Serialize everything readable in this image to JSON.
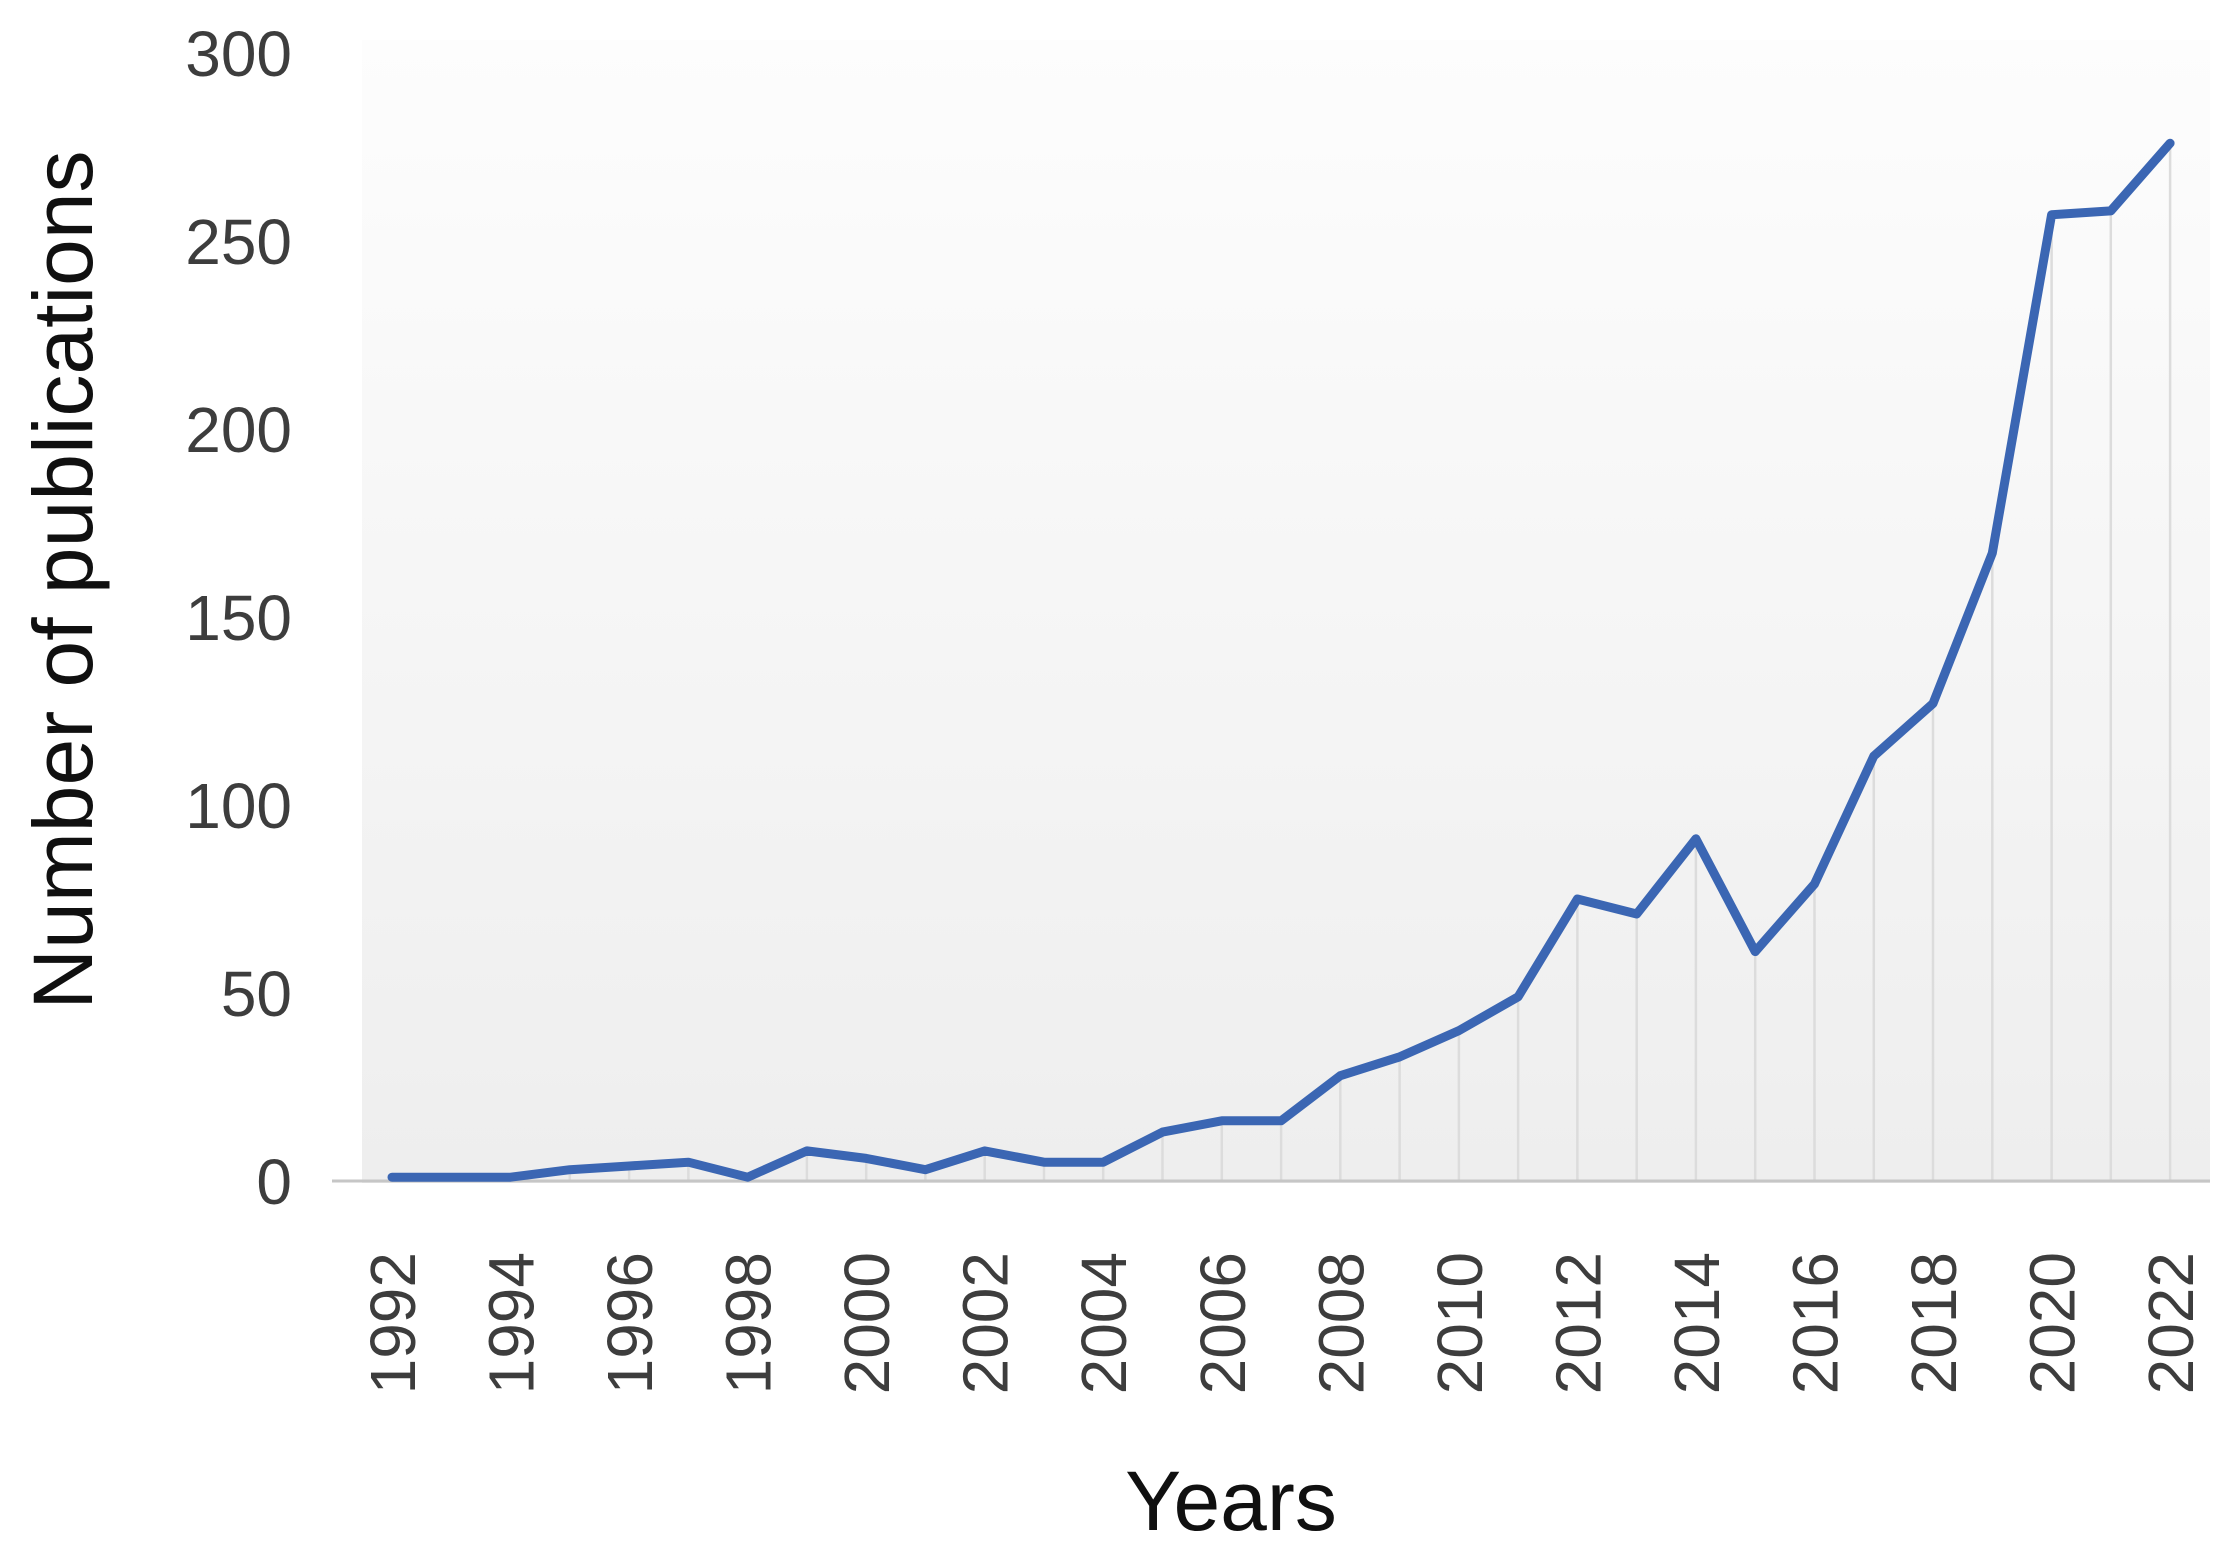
{
  "chart_data": {
    "type": "line",
    "title": "",
    "xlabel": "Years",
    "ylabel": "Number of publications",
    "x": [
      1992,
      1993,
      1994,
      1995,
      1996,
      1997,
      1998,
      1999,
      2000,
      2001,
      2002,
      2003,
      2004,
      2005,
      2006,
      2007,
      2008,
      2009,
      2010,
      2011,
      2012,
      2013,
      2014,
      2015,
      2016,
      2017,
      2018,
      2019,
      2020,
      2021,
      2022
    ],
    "series": [
      {
        "name": "Number of publications",
        "values": [
          1,
          1,
          1,
          3,
          4,
          5,
          1,
          8,
          6,
          3,
          8,
          5,
          5,
          13,
          16,
          16,
          28,
          33,
          40,
          49,
          75,
          71,
          91,
          61,
          79,
          113,
          127,
          167,
          257,
          258,
          276
        ]
      }
    ],
    "x_tick_labels": [
      "1992",
      "1994",
      "1996",
      "1998",
      "2000",
      "2002",
      "2004",
      "2006",
      "2008",
      "2010",
      "2012",
      "2014",
      "2016",
      "2018",
      "2020",
      "2022"
    ],
    "y_ticks": [
      0,
      50,
      100,
      150,
      200,
      250,
      300
    ],
    "ylim": [
      0,
      300
    ],
    "xlim_years": [
      1992,
      2022
    ],
    "legend_position": "none",
    "grid": "vertical drop lines from each data point to x-axis",
    "line_color": "#3b66b3",
    "drop_line_color": "#dcdcdc",
    "axis_line_color": "#c6c6c6",
    "tick_label_color": "#3d3d3d",
    "axis_title_color": "#101010",
    "plot_bg_top_color": "#fdfdfd",
    "plot_bg_bottom_color": "#eeeeee"
  }
}
